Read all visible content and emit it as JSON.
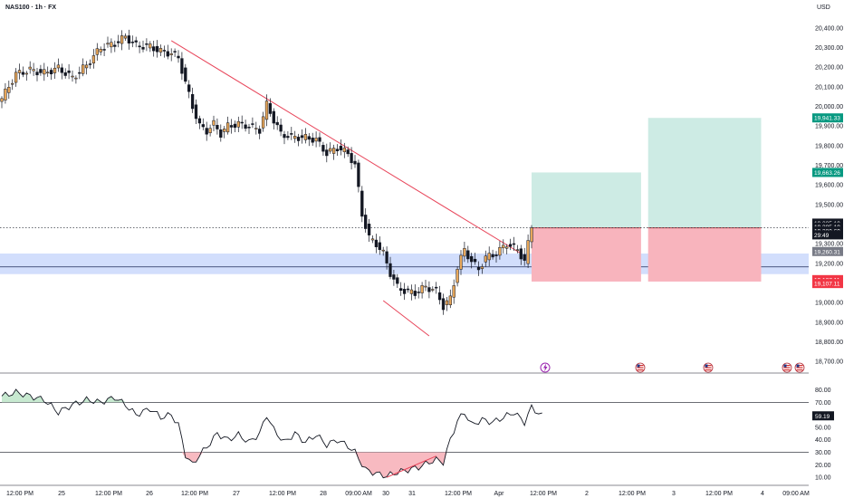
{
  "header": {
    "symbol": "NAS100 · 1h · FX",
    "currency": "USD"
  },
  "chart_data": [
    {
      "type": "candlestick",
      "title": "NAS100 · 1h · FX",
      "ylabel": "USD",
      "ylim": [
        18650,
        20450
      ],
      "y_ticks": [
        18700,
        18800,
        18900,
        19000,
        19100,
        19200,
        19300,
        19400,
        19500,
        19600,
        19700,
        19800,
        19900,
        20000,
        20100,
        20200,
        20300,
        20400
      ],
      "y_tick_labels": [
        "18,700.00",
        "18,800.00",
        "18,900.00",
        "19,000.00",
        "19,100.00",
        "19,200.00",
        "19,300.00",
        "19,400.00",
        "19,500.00",
        "19,600.00",
        "19,700.00",
        "19,800.00",
        "19,900.00",
        "20,000.00",
        "20,100.00",
        "20,200.00",
        "20,300.00",
        "20,400.00"
      ],
      "x_labels": [
        "12:00 PM",
        "25",
        "12:00 PM",
        "26",
        "12:00 PM",
        "27",
        "12:00 PM",
        "28",
        "09:00 AM",
        "30",
        "31",
        "12:00 PM",
        "Apr",
        "12:00 PM",
        "2",
        "12:00 PM",
        "3",
        "12:00 PM",
        "4",
        "09:00 AM"
      ],
      "grid": false,
      "anchors": [
        {
          "i": 0,
          "p": 20040
        },
        {
          "i": 4,
          "p": 20165
        },
        {
          "i": 8,
          "p": 20185
        },
        {
          "i": 12,
          "p": 20170
        },
        {
          "i": 16,
          "p": 20195
        },
        {
          "i": 20,
          "p": 20145
        },
        {
          "i": 24,
          "p": 20210
        },
        {
          "i": 28,
          "p": 20300
        },
        {
          "i": 32,
          "p": 20320
        },
        {
          "i": 35,
          "p": 20355
        },
        {
          "i": 38,
          "p": 20310
        },
        {
          "i": 42,
          "p": 20305
        },
        {
          "i": 45,
          "p": 20280
        },
        {
          "i": 48,
          "p": 20270
        },
        {
          "i": 50,
          "p": 20250
        },
        {
          "i": 52,
          "p": 20120
        },
        {
          "i": 54,
          "p": 20000
        },
        {
          "i": 56,
          "p": 19900
        },
        {
          "i": 58,
          "p": 19875
        },
        {
          "i": 60,
          "p": 19910
        },
        {
          "i": 62,
          "p": 19860
        },
        {
          "i": 64,
          "p": 19900
        },
        {
          "i": 67,
          "p": 19910
        },
        {
          "i": 70,
          "p": 19900
        },
        {
          "i": 73,
          "p": 19880
        },
        {
          "i": 75,
          "p": 20010
        },
        {
          "i": 77,
          "p": 19930
        },
        {
          "i": 79,
          "p": 19860
        },
        {
          "i": 82,
          "p": 19845
        },
        {
          "i": 86,
          "p": 19840
        },
        {
          "i": 89,
          "p": 19830
        },
        {
          "i": 92,
          "p": 19760
        },
        {
          "i": 95,
          "p": 19790
        },
        {
          "i": 98,
          "p": 19760
        },
        {
          "i": 100,
          "p": 19700
        },
        {
          "i": 102,
          "p": 19450
        },
        {
          "i": 104,
          "p": 19330
        },
        {
          "i": 106,
          "p": 19300
        },
        {
          "i": 108,
          "p": 19250
        },
        {
          "i": 110,
          "p": 19150
        },
        {
          "i": 112,
          "p": 19080
        },
        {
          "i": 114,
          "p": 19060
        },
        {
          "i": 117,
          "p": 19050
        },
        {
          "i": 120,
          "p": 19080
        },
        {
          "i": 123,
          "p": 19060
        },
        {
          "i": 125,
          "p": 18980
        },
        {
          "i": 127,
          "p": 19020
        },
        {
          "i": 129,
          "p": 19180
        },
        {
          "i": 131,
          "p": 19270
        },
        {
          "i": 133,
          "p": 19210
        },
        {
          "i": 135,
          "p": 19170
        },
        {
          "i": 137,
          "p": 19230
        },
        {
          "i": 140,
          "p": 19250
        },
        {
          "i": 143,
          "p": 19300
        },
        {
          "i": 146,
          "p": 19270
        },
        {
          "i": 148,
          "p": 19210
        },
        {
          "i": 150,
          "p": 19390
        }
      ],
      "candle_count": 151,
      "trendline": {
        "start": {
          "i": 48,
          "p": 20335
        },
        "end": {
          "i": 147,
          "p": 19250
        }
      },
      "divergence_line_price": {
        "start": {
          "i": 108,
          "p": 19010
        },
        "end": {
          "i": 121,
          "p": 18830
        }
      },
      "support_zone": {
        "from": 19145,
        "to": 19250,
        "mid_line": 19182
      },
      "current_price_line": 19380.69,
      "positions": [
        {
          "from_i": 150,
          "to_i": 181,
          "entry": 19380.69,
          "target": 19663.26,
          "stop": 19107.11
        },
        {
          "from_i": 183,
          "to_i": 215,
          "entry": 19380.69,
          "target": 19941.33,
          "stop": 19107.11
        }
      ],
      "price_badges": [
        {
          "text": "19,941.33",
          "price": 19941.33,
          "color": "#089981"
        },
        {
          "text": "19,663.26",
          "price": 19663.26,
          "color": "#089981"
        },
        {
          "text": "19,385.19",
          "price": 19405,
          "color": "#131722"
        },
        {
          "text": "19,385.19",
          "price": 19385.19,
          "color": "#131722"
        },
        {
          "text": "19,380.69",
          "price": 19365,
          "color": "#131722"
        },
        {
          "text": "29:49",
          "price": 19345,
          "color": "#131722"
        },
        {
          "text": "19,260.31",
          "price": 19260.31,
          "color": "#787b86"
        },
        {
          "text": "19,107.11",
          "price": 19117,
          "color": "#f23645"
        },
        {
          "text": "19,107.11",
          "price": 19097,
          "color": "#f23645"
        }
      ],
      "event_icons": [
        "lightning-icon",
        "us-flag-icon",
        "us-flag-icon",
        "us-flag-icon",
        "us-flag-icon"
      ]
    },
    {
      "type": "line",
      "title": "",
      "ylim": [
        5,
        92
      ],
      "y_ticks": [
        10,
        20,
        30,
        40,
        50,
        60,
        70,
        80
      ],
      "y_tick_labels": [
        "10.00",
        "20.00",
        "30.00",
        "40.00",
        "50.00",
        "60.00",
        "70.00",
        "80.00"
      ],
      "bands": [
        30,
        70
      ],
      "current_value": "59.19",
      "anchors": [
        {
          "i": 0,
          "v": 75
        },
        {
          "i": 4,
          "v": 78
        },
        {
          "i": 8,
          "v": 75
        },
        {
          "i": 12,
          "v": 72
        },
        {
          "i": 16,
          "v": 62
        },
        {
          "i": 20,
          "v": 68
        },
        {
          "i": 24,
          "v": 72
        },
        {
          "i": 28,
          "v": 70
        },
        {
          "i": 32,
          "v": 74
        },
        {
          "i": 35,
          "v": 68
        },
        {
          "i": 38,
          "v": 60
        },
        {
          "i": 42,
          "v": 65
        },
        {
          "i": 45,
          "v": 58
        },
        {
          "i": 48,
          "v": 60
        },
        {
          "i": 50,
          "v": 52
        },
        {
          "i": 52,
          "v": 28
        },
        {
          "i": 54,
          "v": 20
        },
        {
          "i": 56,
          "v": 28
        },
        {
          "i": 58,
          "v": 34
        },
        {
          "i": 61,
          "v": 45
        },
        {
          "i": 64,
          "v": 40
        },
        {
          "i": 67,
          "v": 44
        },
        {
          "i": 70,
          "v": 38
        },
        {
          "i": 73,
          "v": 45
        },
        {
          "i": 75,
          "v": 60
        },
        {
          "i": 77,
          "v": 48
        },
        {
          "i": 80,
          "v": 38
        },
        {
          "i": 83,
          "v": 45
        },
        {
          "i": 86,
          "v": 38
        },
        {
          "i": 89,
          "v": 44
        },
        {
          "i": 92,
          "v": 36
        },
        {
          "i": 95,
          "v": 40
        },
        {
          "i": 98,
          "v": 35
        },
        {
          "i": 100,
          "v": 30
        },
        {
          "i": 103,
          "v": 16
        },
        {
          "i": 106,
          "v": 13
        },
        {
          "i": 109,
          "v": 11
        },
        {
          "i": 112,
          "v": 14
        },
        {
          "i": 115,
          "v": 16
        },
        {
          "i": 118,
          "v": 18
        },
        {
          "i": 121,
          "v": 22
        },
        {
          "i": 123,
          "v": 24
        },
        {
          "i": 125,
          "v": 22
        },
        {
          "i": 127,
          "v": 40
        },
        {
          "i": 129,
          "v": 55
        },
        {
          "i": 131,
          "v": 62
        },
        {
          "i": 133,
          "v": 52
        },
        {
          "i": 136,
          "v": 56
        },
        {
          "i": 139,
          "v": 54
        },
        {
          "i": 142,
          "v": 58
        },
        {
          "i": 145,
          "v": 62
        },
        {
          "i": 148,
          "v": 54
        },
        {
          "i": 150,
          "v": 66
        },
        {
          "i": 153,
          "v": 59
        }
      ],
      "divergence_line": {
        "start": {
          "i": 109,
          "v": 10
        },
        "end": {
          "i": 123,
          "v": 27
        }
      }
    }
  ]
}
